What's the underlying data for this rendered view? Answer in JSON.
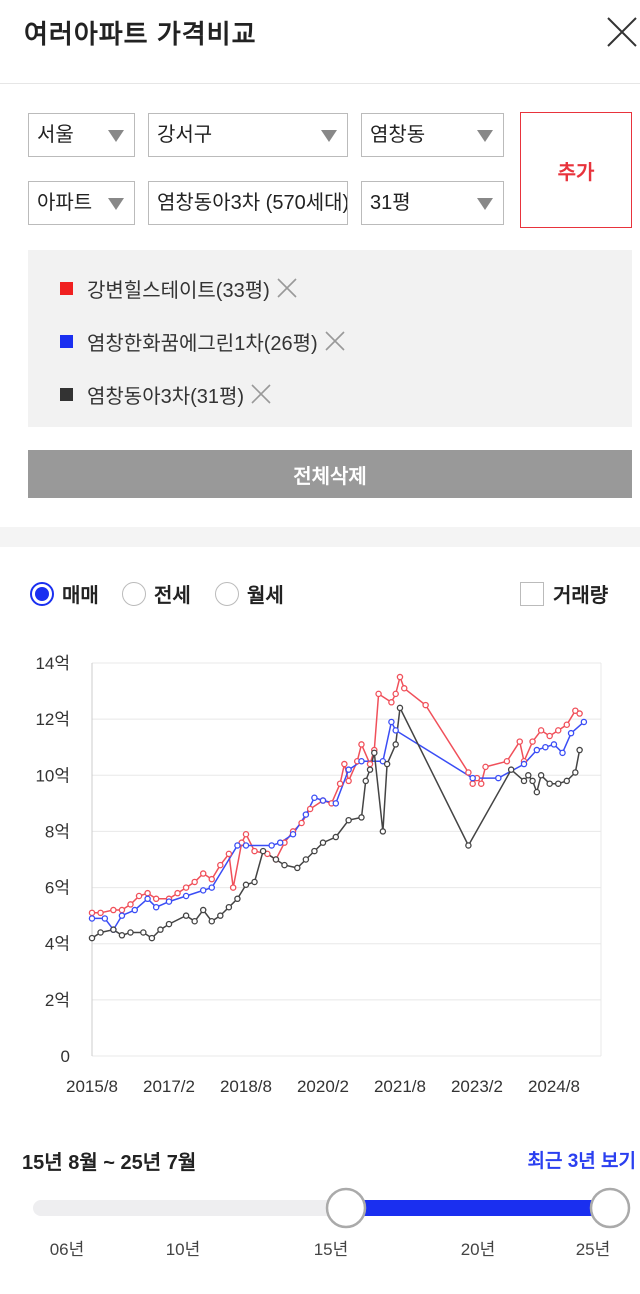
{
  "header": {
    "title": "여러아파트 가격비교"
  },
  "selectors": {
    "row1": [
      "서울",
      "강서구",
      "염창동"
    ],
    "row2": [
      "아파트",
      "염창동아3차 (570세대)",
      "31평"
    ]
  },
  "add_button": "추가",
  "clear_all": "전체삭제",
  "tabs": [
    "매매",
    "전세",
    "월세"
  ],
  "volume": "거래량",
  "chart_data": {
    "type": "line",
    "xlim": [
      "2015-08",
      "2025-07"
    ],
    "xticks": [
      {
        "value": "2015-08",
        "label": "2015/8"
      },
      {
        "value": "2017-02",
        "label": "2017/2"
      },
      {
        "value": "2018-08",
        "label": "2018/8"
      },
      {
        "value": "2020-02",
        "label": "2020/2"
      },
      {
        "value": "2021-08",
        "label": "2021/8"
      },
      {
        "value": "2023-02",
        "label": "2023/2"
      },
      {
        "value": "2024-08",
        "label": "2024/8"
      }
    ],
    "ylim": [
      0,
      14
    ],
    "yticks": [
      0,
      {
        "value": 2,
        "label": "2억"
      },
      {
        "value": 4,
        "label": "4억"
      },
      {
        "value": 6,
        "label": "6억"
      },
      {
        "value": 8,
        "label": "8억"
      },
      {
        "value": 10,
        "label": "10억"
      },
      {
        "value": 12,
        "label": "12억"
      },
      {
        "value": 14,
        "label": "14억"
      }
    ],
    "grid": true,
    "series": [
      {
        "name": "강변힐스테이트(33평)",
        "color": "#f02020",
        "line_color": "#f0505a",
        "x": [
          "2015-08",
          "2015-10",
          "2016-01",
          "2016-03",
          "2016-05",
          "2016-07",
          "2016-09",
          "2016-11",
          "2017-02",
          "2017-04",
          "2017-06",
          "2017-08",
          "2017-10",
          "2017-12",
          "2018-02",
          "2018-04",
          "2018-05",
          "2018-07",
          "2018-08",
          "2018-10",
          "2019-01",
          "2019-03",
          "2019-05",
          "2019-07",
          "2019-09",
          "2019-11",
          "2020-02",
          "2020-04",
          "2020-06",
          "2020-07",
          "2020-08",
          "2020-10",
          "2020-11",
          "2021-01",
          "2021-02",
          "2021-03",
          "2021-06",
          "2021-07",
          "2021-08",
          "2021-09",
          "2022-02",
          "2022-12",
          "2023-01",
          "2023-02",
          "2023-03",
          "2023-04",
          "2023-09",
          "2023-12",
          "2024-01",
          "2024-03",
          "2024-05",
          "2024-07",
          "2024-09",
          "2024-11",
          "2025-01",
          "2025-02"
        ],
        "values": [
          5.1,
          5.1,
          5.2,
          5.2,
          5.4,
          5.7,
          5.8,
          5.6,
          5.6,
          5.8,
          6.0,
          6.2,
          6.5,
          6.3,
          6.8,
          7.2,
          6.0,
          7.6,
          7.9,
          7.3,
          7.2,
          7.0,
          7.6,
          8.0,
          8.3,
          8.8,
          9.1,
          9.0,
          9.7,
          10.4,
          9.8,
          10.5,
          11.1,
          10.4,
          10.9,
          12.9,
          12.6,
          12.9,
          13.5,
          13.1,
          12.5,
          10.1,
          9.7,
          9.9,
          9.7,
          10.3,
          10.5,
          11.2,
          10.5,
          11.2,
          11.6,
          11.4,
          11.6,
          11.8,
          12.3,
          12.2
        ]
      },
      {
        "name": "염창한화꿈에그린1차(26평)",
        "color": "#1a2ff0",
        "line_color": "#3a4df5",
        "x": [
          "2015-08",
          "2015-11",
          "2016-01",
          "2016-03",
          "2016-06",
          "2016-09",
          "2016-11",
          "2017-02",
          "2017-06",
          "2017-10",
          "2017-12",
          "2018-06",
          "2018-08",
          "2019-02",
          "2019-04",
          "2019-07",
          "2019-10",
          "2019-12",
          "2020-02",
          "2020-05",
          "2020-08",
          "2020-11",
          "2021-04",
          "2021-06",
          "2021-07",
          "2023-01",
          "2023-07",
          "2024-01",
          "2024-04",
          "2024-06",
          "2024-08",
          "2024-10",
          "2024-12",
          "2025-03"
        ],
        "values": [
          4.9,
          4.9,
          4.5,
          5.0,
          5.2,
          5.6,
          5.3,
          5.5,
          5.7,
          5.9,
          6.0,
          7.5,
          7.5,
          7.5,
          7.6,
          7.9,
          8.6,
          9.2,
          9.1,
          9.0,
          10.2,
          10.5,
          10.5,
          11.9,
          11.6,
          9.9,
          9.9,
          10.4,
          10.9,
          11.0,
          11.1,
          10.8,
          11.5,
          11.9
        ]
      },
      {
        "name": "염창동아3차(31평)",
        "color": "#333333",
        "line_color": "#444444",
        "x": [
          "2015-08",
          "2015-10",
          "2016-01",
          "2016-03",
          "2016-05",
          "2016-08",
          "2016-10",
          "2016-12",
          "2017-02",
          "2017-06",
          "2017-08",
          "2017-10",
          "2017-12",
          "2018-02",
          "2018-04",
          "2018-06",
          "2018-08",
          "2018-10",
          "2018-12",
          "2019-03",
          "2019-05",
          "2019-08",
          "2019-10",
          "2019-12",
          "2020-02",
          "2020-05",
          "2020-08",
          "2020-11",
          "2020-12",
          "2021-01",
          "2021-02",
          "2021-04",
          "2021-05",
          "2021-07",
          "2021-08",
          "2022-12",
          "2023-10",
          "2024-01",
          "2024-02",
          "2024-03",
          "2024-04",
          "2024-05",
          "2024-07",
          "2024-09",
          "2024-11",
          "2025-01",
          "2025-02"
        ],
        "values": [
          4.2,
          4.4,
          4.5,
          4.3,
          4.4,
          4.4,
          4.2,
          4.5,
          4.7,
          5.0,
          4.8,
          5.2,
          4.8,
          5.0,
          5.3,
          5.6,
          6.1,
          6.2,
          7.3,
          7.0,
          6.8,
          6.7,
          7.0,
          7.3,
          7.6,
          7.8,
          8.4,
          8.5,
          9.8,
          10.2,
          10.8,
          8.0,
          10.4,
          11.1,
          12.4,
          7.5,
          10.2,
          9.8,
          10.0,
          9.8,
          9.4,
          10.0,
          9.7,
          9.7,
          9.8,
          10.1,
          10.9
        ]
      }
    ]
  },
  "range": {
    "label": "15년 8월 ~ 25년 7월",
    "recent": "최근 3년 보기",
    "ticks": [
      "06년",
      "10년",
      "15년",
      "20년",
      "25년"
    ]
  }
}
